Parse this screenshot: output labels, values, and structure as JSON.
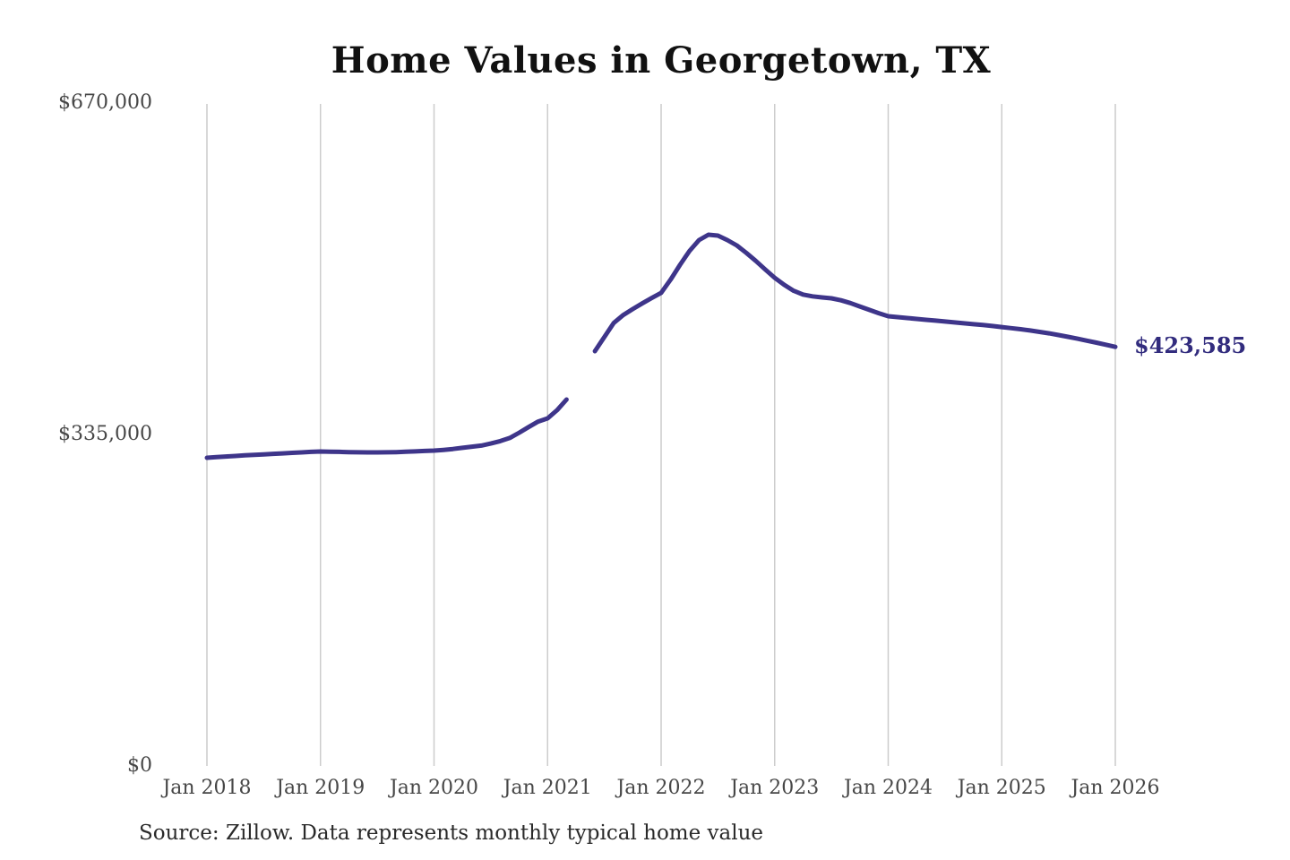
{
  "title": "Home Values in Georgetown, TX",
  "source_note": "Source: Zillow. Data represents monthly typical home value",
  "colors": {
    "background": "#ffffff",
    "line": "#3e358a",
    "grid": "#cccccc",
    "axis_text": "#474747",
    "title_text": "#111111",
    "annotation_text": "#322c7e",
    "source_text": "#2a2a2a"
  },
  "chart_data": {
    "type": "line",
    "title": "Home Values in Georgetown, TX",
    "xlabel": "",
    "ylabel": "",
    "ylim": [
      0,
      670000
    ],
    "grid": "vertical-only",
    "legend": "none",
    "x_tick_labels": [
      "Jan 2018",
      "Jan 2019",
      "Jan 2020",
      "Jan 2021",
      "Jan 2022",
      "Jan 2023",
      "Jan 2024",
      "Jan 2025",
      "Jan 2026"
    ],
    "y_ticks": [
      {
        "label": "$0",
        "value": 0
      },
      {
        "label": "$335,000",
        "value": 335000
      },
      {
        "label": "$670,000",
        "value": 670000
      }
    ],
    "end_label": "$423,585",
    "end_value": 423585,
    "series": [
      {
        "name": "Monthly typical home value",
        "color": "#3e358a",
        "segments": [
          {
            "start_month": "2018-01",
            "values": [
              311500,
              312100,
              312700,
              313300,
              313900,
              314400,
              314900,
              315400,
              315900,
              316400,
              316900,
              317400,
              317800,
              317600,
              317400,
              317200,
              317000,
              316900,
              316900,
              317000,
              317200,
              317500,
              317900,
              318300,
              318700,
              319400,
              320300,
              321500,
              322700,
              323800,
              325900,
              328300,
              331500,
              336800,
              342500,
              348000,
              351300,
              359500,
              370300
            ]
          },
          {
            "start_month": "2021-06",
            "values": [
              419200,
              433500,
              447800,
              455800,
              461800,
              467500,
              472900,
              478100,
              491500,
              506500,
              520500,
              531500,
              536900,
              536000,
              531500,
              526000,
              518500,
              510500,
              501800,
              493400,
              486300,
              480200,
              476400,
              474600,
              473500,
              472600,
              470600,
              467800,
              464400,
              460900,
              457600,
              454500,
              453600,
              452700,
              451800,
              450900,
              450100,
              449200,
              448300,
              447400,
              446500,
              445600,
              444600,
              443600,
              442500,
              441400,
              440100,
              438700,
              437200,
              435500,
              433700,
              431800,
              429800,
              427800,
              425700,
              423585
            ]
          }
        ]
      }
    ]
  }
}
